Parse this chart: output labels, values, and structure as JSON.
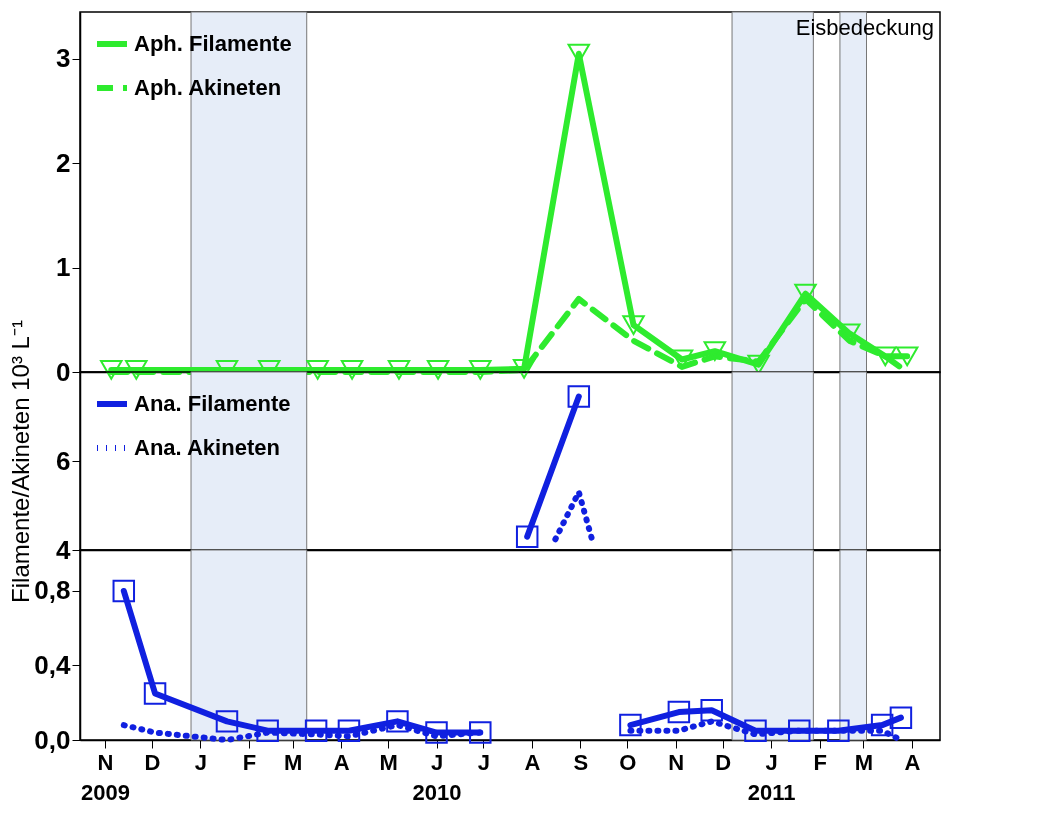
{
  "chart_data": [
    {
      "type": "line",
      "x": [
        "2009-11-05",
        "2009-11-21",
        "2010-01-18",
        "2010-02-14",
        "2010-03-17",
        "2010-04-08",
        "2010-05-08",
        "2010-06-02",
        "2010-06-29",
        "2010-07-27",
        "2010-08-31",
        "2010-10-05",
        "2010-11-05",
        "2010-11-26",
        "2010-12-24",
        "2011-01-23",
        "2011-02-20",
        "2011-03-15",
        "2011-03-29"
      ],
      "series": [
        {
          "name": "Aph. Filamente",
          "color": "#2eeb2e",
          "marker": "triangle",
          "line_style": "solid",
          "values": [
            0.02,
            0.02,
            0.02,
            0.02,
            0.02,
            0.02,
            0.02,
            0.02,
            0.02,
            0.03,
            3.05,
            0.45,
            0.12,
            0.2,
            0.07,
            0.75,
            0.37,
            0.15,
            0.15
          ]
        },
        {
          "name": "Aph. Akineten",
          "color": "#2eeb2e",
          "marker": "none",
          "line_style": "dashed",
          "values": [
            0,
            0,
            0,
            0,
            0,
            0,
            0,
            0,
            0,
            0.02,
            0.7,
            0.3,
            0.05,
            0.15,
            0.1,
            0.7,
            0.3,
            0.15,
            0
          ]
        }
      ],
      "xlim": [
        "2009-10-16",
        "2011-04-19"
      ],
      "ylim": [
        0,
        3.45
      ],
      "yticks": [
        0,
        1,
        2,
        3
      ],
      "bands": [
        {
          "axis": "x",
          "from": "2009-12-26",
          "to": "2010-03-10",
          "color": "#e6edf8"
        },
        {
          "axis": "x",
          "from": "2010-12-07",
          "to": "2011-01-28",
          "color": "#e6edf8"
        },
        {
          "axis": "x",
          "from": "2011-02-14",
          "to": "2011-03-03",
          "color": "#e6edf8"
        }
      ],
      "annotations": [
        "Eisbedeckung"
      ],
      "legend": "top left",
      "grid": false,
      "tick_labels": "y"
    },
    {
      "type": "line",
      "series": [
        {
          "name": "Ana. Filamente",
          "color": "#1020e0",
          "marker": "square",
          "line_style": "solid",
          "x": [
            "2010-07-29",
            "2010-08-31"
          ],
          "values": [
            4.3,
            7.45
          ]
        },
        {
          "name": "Ana. Akineten",
          "color": "#1020e0",
          "marker": "none",
          "line_style": "dotted",
          "x": [
            "2010-08-16",
            "2010-08-31",
            "2010-09-09"
          ],
          "values": [
            4.24,
            5.3,
            4.17
          ]
        }
      ],
      "ylabel": "Filamente/Akineten 10³ L⁻¹",
      "xlim": [
        "2009-10-16",
        "2011-04-19"
      ],
      "ylim": [
        4,
        8
      ],
      "yticks": [
        4,
        6
      ],
      "bands": [
        {
          "axis": "x",
          "from": "2009-12-26",
          "to": "2010-03-10",
          "color": "#e6edf8"
        },
        {
          "axis": "x",
          "from": "2010-12-07",
          "to": "2011-01-28",
          "color": "#e6edf8"
        },
        {
          "axis": "x",
          "from": "2011-02-14",
          "to": "2011-03-03",
          "color": "#e6edf8"
        }
      ],
      "legend": "top left",
      "grid": false,
      "tick_labels": "y"
    },
    {
      "type": "line",
      "x": [
        "2009-11-13",
        "2009-12-03",
        "2010-01-18",
        "2010-02-13",
        "2010-03-16",
        "2010-04-06",
        "2010-05-07",
        "2010-06-01",
        "2010-06-29",
        "2010-07-29",
        "2010-08-31",
        "2010-10-03",
        "2010-11-03",
        "2010-11-24",
        "2010-12-22",
        "2011-01-19",
        "2011-02-13",
        "2011-03-13",
        "2011-03-25"
      ],
      "series": [
        {
          "color": "#1020e0",
          "marker": "square",
          "line_style": "solid",
          "values": [
            0.8,
            0.25,
            0.1,
            0.05,
            0.05,
            0.05,
            0.1,
            0.04,
            0.04,
            null,
            null,
            0.08,
            0.15,
            0.16,
            0.05,
            0.05,
            0.05,
            0.08,
            0.12
          ]
        },
        {
          "color": "#1020e0",
          "marker": "none",
          "line_style": "dotted",
          "values": [
            0.08,
            0.04,
            0,
            0.04,
            0.03,
            0.02,
            0.08,
            0.02,
            0.04,
            null,
            null,
            0.05,
            0.05,
            0.1,
            0.03,
            0.05,
            0.05,
            0.05,
            0
          ]
        }
      ],
      "xlim": [
        "2009-10-16",
        "2011-04-19"
      ],
      "ylim": [
        0,
        1.02
      ],
      "yticks": [
        {
          "value": 0,
          "label": "0,0"
        },
        {
          "value": 0.4,
          "label": "0,4"
        },
        {
          "value": 0.8,
          "label": "0,8"
        }
      ],
      "xticks": [
        {
          "value": "2009-11-01",
          "label": "N\n2009"
        },
        {
          "value": "2009-12-01",
          "label": "D"
        },
        {
          "value": "2010-01-01",
          "label": "J"
        },
        {
          "value": "2010-02-01",
          "label": "F"
        },
        {
          "value": "2010-03-01",
          "label": "M"
        },
        {
          "value": "2010-04-01",
          "label": "A"
        },
        {
          "value": "2010-05-01",
          "label": "M"
        },
        {
          "value": "2010-06-01",
          "label": "J\n2010"
        },
        {
          "value": "2010-07-01",
          "label": "J"
        },
        {
          "value": "2010-08-01",
          "label": "A"
        },
        {
          "value": "2010-09-01",
          "label": "S"
        },
        {
          "value": "2010-10-01",
          "label": "O"
        },
        {
          "value": "2010-11-01",
          "label": "N"
        },
        {
          "value": "2010-12-01",
          "label": "D"
        },
        {
          "value": "2011-01-01",
          "label": "J\n2011"
        },
        {
          "value": "2011-02-01",
          "label": "F"
        },
        {
          "value": "2011-03-01",
          "label": "M"
        },
        {
          "value": "2011-04-01",
          "label": "A"
        }
      ],
      "bands": [
        {
          "axis": "x",
          "from": "2009-12-26",
          "to": "2010-03-10",
          "color": "#e6edf8"
        },
        {
          "axis": "x",
          "from": "2010-12-07",
          "to": "2011-01-28",
          "color": "#e6edf8"
        },
        {
          "axis": "x",
          "from": "2011-02-14",
          "to": "2011-03-03",
          "color": "#e6edf8"
        }
      ],
      "grid": false
    }
  ]
}
